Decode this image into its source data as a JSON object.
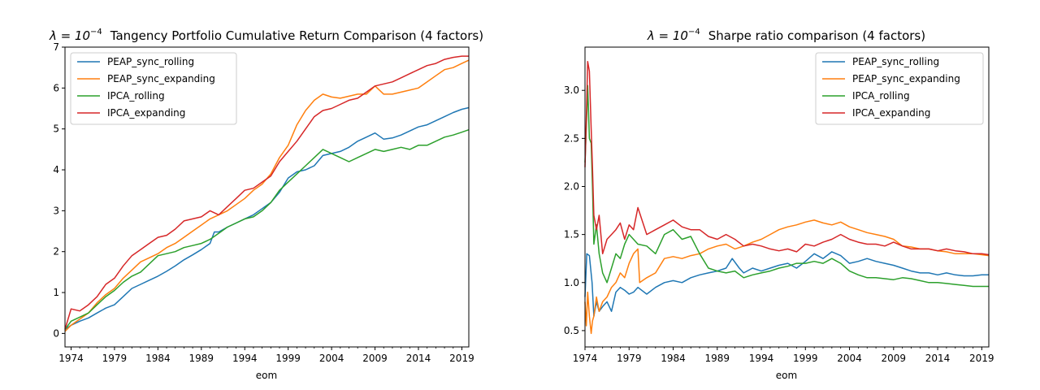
{
  "chart_data": [
    {
      "type": "line",
      "title_lambda": "λ = 10",
      "title_exp": "−4",
      "title_rest": "Tangency Portfolio Cumulative Return Comparison (4 factors)",
      "xlabel": "eom",
      "ylabel": "",
      "xlim": [
        1973.3,
        2019.8
      ],
      "ylim": [
        -0.33,
        7.0
      ],
      "xticks": [
        1974,
        1979,
        1984,
        1989,
        1994,
        1999,
        2004,
        2009,
        2014,
        2019
      ],
      "yticks": [
        0,
        1,
        2,
        3,
        4,
        5,
        6,
        7
      ],
      "grid": false,
      "legend_position": "upper left",
      "series": [
        {
          "name": "PEAP_sync_rolling",
          "color": "#1f77b4",
          "x": [
            1973.3,
            1974,
            1975,
            1976,
            1977,
            1978,
            1979,
            1980,
            1981,
            1982,
            1983,
            1984,
            1985,
            1986,
            1987,
            1988,
            1989,
            1990,
            1990.5,
            1991,
            1992,
            1993,
            1994,
            1995,
            1996,
            1997,
            1998,
            1999,
            2000,
            2001,
            2002,
            2003,
            2004,
            2005,
            2006,
            2007,
            2008,
            2009,
            2010,
            2011,
            2012,
            2013,
            2014,
            2015,
            2016,
            2017,
            2018,
            2019,
            2019.8
          ],
          "y": [
            0.1,
            0.2,
            0.3,
            0.38,
            0.5,
            0.62,
            0.7,
            0.9,
            1.1,
            1.2,
            1.3,
            1.4,
            1.52,
            1.65,
            1.8,
            1.92,
            2.05,
            2.2,
            2.48,
            2.48,
            2.6,
            2.7,
            2.8,
            2.9,
            3.05,
            3.2,
            3.45,
            3.8,
            3.95,
            4.0,
            4.1,
            4.35,
            4.4,
            4.45,
            4.55,
            4.7,
            4.8,
            4.9,
            4.75,
            4.78,
            4.85,
            4.95,
            5.05,
            5.1,
            5.2,
            5.3,
            5.4,
            5.48,
            5.52
          ]
        },
        {
          "name": "PEAP_sync_expanding",
          "color": "#ff7f0e",
          "x": [
            1973.3,
            1974,
            1975,
            1976,
            1977,
            1978,
            1979,
            1980,
            1981,
            1982,
            1983,
            1984,
            1985,
            1986,
            1987,
            1988,
            1989,
            1990,
            1991,
            1992,
            1993,
            1994,
            1995,
            1996,
            1997,
            1998,
            1999,
            2000,
            2001,
            2002,
            2003,
            2004,
            2005,
            2006,
            2007,
            2008,
            2009,
            2010,
            2011,
            2012,
            2013,
            2014,
            2015,
            2016,
            2017,
            2018,
            2019,
            2019.8
          ],
          "y": [
            0.05,
            0.2,
            0.35,
            0.5,
            0.75,
            0.95,
            1.1,
            1.35,
            1.55,
            1.75,
            1.85,
            1.95,
            2.1,
            2.2,
            2.35,
            2.5,
            2.65,
            2.8,
            2.9,
            3.0,
            3.15,
            3.3,
            3.5,
            3.65,
            3.9,
            4.3,
            4.6,
            5.1,
            5.45,
            5.7,
            5.85,
            5.78,
            5.75,
            5.8,
            5.85,
            5.85,
            6.05,
            5.85,
            5.85,
            5.9,
            5.95,
            6.0,
            6.15,
            6.3,
            6.45,
            6.5,
            6.6,
            6.68
          ]
        },
        {
          "name": "IPCA_rolling",
          "color": "#2ca02c",
          "x": [
            1973.3,
            1974,
            1975,
            1976,
            1977,
            1978,
            1979,
            1980,
            1981,
            1982,
            1983,
            1984,
            1985,
            1986,
            1987,
            1988,
            1989,
            1990,
            1991,
            1992,
            1993,
            1994,
            1995,
            1996,
            1997,
            1998,
            1999,
            2000,
            2001,
            2002,
            2003,
            2004,
            2005,
            2006,
            2007,
            2008,
            2009,
            2010,
            2011,
            2012,
            2013,
            2014,
            2015,
            2016,
            2017,
            2018,
            2019,
            2019.8
          ],
          "y": [
            0.1,
            0.3,
            0.4,
            0.5,
            0.7,
            0.9,
            1.05,
            1.25,
            1.4,
            1.5,
            1.7,
            1.9,
            1.95,
            2.0,
            2.1,
            2.15,
            2.2,
            2.3,
            2.45,
            2.6,
            2.7,
            2.8,
            2.85,
            3.0,
            3.2,
            3.5,
            3.7,
            3.9,
            4.1,
            4.3,
            4.5,
            4.4,
            4.3,
            4.2,
            4.3,
            4.4,
            4.5,
            4.45,
            4.5,
            4.55,
            4.5,
            4.6,
            4.6,
            4.7,
            4.8,
            4.85,
            4.92,
            4.98
          ]
        },
        {
          "name": "IPCA_expanding",
          "color": "#d62728",
          "x": [
            1973.3,
            1974,
            1975,
            1976,
            1977,
            1978,
            1979,
            1980,
            1981,
            1982,
            1983,
            1984,
            1985,
            1986,
            1987,
            1988,
            1989,
            1990,
            1991,
            1992,
            1993,
            1994,
            1995,
            1996,
            1997,
            1998,
            1999,
            2000,
            2001,
            2002,
            2003,
            2004,
            2005,
            2006,
            2007,
            2008,
            2009,
            2010,
            2011,
            2012,
            2013,
            2014,
            2015,
            2016,
            2017,
            2018,
            2019,
            2019.8
          ],
          "y": [
            0.1,
            0.6,
            0.55,
            0.7,
            0.9,
            1.2,
            1.35,
            1.65,
            1.9,
            2.05,
            2.2,
            2.35,
            2.4,
            2.55,
            2.75,
            2.8,
            2.85,
            3.0,
            2.9,
            3.1,
            3.3,
            3.5,
            3.55,
            3.7,
            3.85,
            4.2,
            4.45,
            4.7,
            5.0,
            5.3,
            5.45,
            5.5,
            5.6,
            5.7,
            5.75,
            5.9,
            6.05,
            6.1,
            6.15,
            6.25,
            6.35,
            6.45,
            6.55,
            6.6,
            6.7,
            6.75,
            6.78,
            6.78
          ]
        }
      ]
    },
    {
      "type": "line",
      "title_lambda": "λ = 10",
      "title_exp": "−4",
      "title_rest": "Sharpe ratio comparison (4 factors)",
      "xlabel": "eom",
      "ylabel": "",
      "xlim": [
        1974.0,
        2019.8
      ],
      "ylim": [
        0.33,
        3.45
      ],
      "xticks": [
        1974,
        1979,
        1984,
        1989,
        1994,
        1999,
        2004,
        2009,
        2014,
        2019
      ],
      "yticks": [
        0.5,
        1.0,
        1.5,
        2.0,
        2.5,
        3.0
      ],
      "grid": false,
      "legend_position": "upper right",
      "series": [
        {
          "name": "PEAP_sync_rolling",
          "color": "#1f77b4",
          "x": [
            1974.0,
            1974.2,
            1974.5,
            1974.8,
            1975.0,
            1975.3,
            1975.6,
            1976,
            1976.5,
            1977,
            1977.5,
            1978,
            1978.5,
            1979,
            1979.5,
            1980,
            1981,
            1982,
            1983,
            1984,
            1985,
            1986,
            1987,
            1988,
            1989,
            1990,
            1990.7,
            1991.5,
            1992,
            1993,
            1994,
            1995,
            1996,
            1997,
            1998,
            1999,
            2000,
            2001,
            2002,
            2003,
            2004,
            2005,
            2006,
            2007,
            2008,
            2009,
            2010,
            2011,
            2012,
            2013,
            2014,
            2015,
            2016,
            2017,
            2018,
            2019,
            2019.8
          ],
          "y": [
            0.85,
            1.3,
            1.28,
            1.0,
            0.65,
            0.8,
            0.7,
            0.75,
            0.8,
            0.7,
            0.9,
            0.95,
            0.92,
            0.88,
            0.9,
            0.95,
            0.88,
            0.95,
            1.0,
            1.02,
            1.0,
            1.05,
            1.08,
            1.1,
            1.12,
            1.15,
            1.25,
            1.15,
            1.1,
            1.15,
            1.12,
            1.15,
            1.18,
            1.2,
            1.15,
            1.22,
            1.3,
            1.25,
            1.32,
            1.28,
            1.2,
            1.22,
            1.25,
            1.22,
            1.2,
            1.18,
            1.15,
            1.12,
            1.1,
            1.1,
            1.08,
            1.1,
            1.08,
            1.07,
            1.07,
            1.08,
            1.08
          ]
        },
        {
          "name": "PEAP_sync_expanding",
          "color": "#ff7f0e",
          "x": [
            1974.0,
            1974.15,
            1974.3,
            1974.5,
            1974.7,
            1974.85,
            1975.0,
            1975.3,
            1975.6,
            1976,
            1976.5,
            1977,
            1977.5,
            1978,
            1978.5,
            1979,
            1979.5,
            1980,
            1980.2,
            1981,
            1982,
            1983,
            1984,
            1985,
            1986,
            1987,
            1988,
            1989,
            1990,
            1991,
            1992,
            1993,
            1994,
            1995,
            1996,
            1997,
            1998,
            1999,
            2000,
            2001,
            2002,
            2003,
            2004,
            2005,
            2006,
            2007,
            2008,
            2009,
            2010,
            2011,
            2012,
            2013,
            2014,
            2015,
            2016,
            2017,
            2018,
            2019,
            2019.8
          ],
          "y": [
            0.8,
            0.55,
            0.9,
            0.65,
            0.47,
            0.6,
            0.65,
            0.85,
            0.7,
            0.8,
            0.85,
            0.95,
            1.0,
            1.1,
            1.05,
            1.2,
            1.3,
            1.35,
            1.0,
            1.05,
            1.1,
            1.25,
            1.27,
            1.25,
            1.28,
            1.3,
            1.35,
            1.38,
            1.4,
            1.35,
            1.38,
            1.42,
            1.45,
            1.5,
            1.55,
            1.58,
            1.6,
            1.63,
            1.65,
            1.62,
            1.6,
            1.63,
            1.58,
            1.55,
            1.52,
            1.5,
            1.48,
            1.45,
            1.38,
            1.37,
            1.35,
            1.35,
            1.33,
            1.32,
            1.3,
            1.3,
            1.3,
            1.29,
            1.28
          ]
        },
        {
          "name": "IPCA_rolling",
          "color": "#2ca02c",
          "x": [
            1974.0,
            1974.15,
            1974.3,
            1974.5,
            1974.7,
            1974.85,
            1975.0,
            1975.3,
            1975.6,
            1976,
            1976.5,
            1977,
            1977.5,
            1978,
            1978.5,
            1979,
            1979.5,
            1980,
            1981,
            1982,
            1983,
            1984,
            1985,
            1986,
            1987,
            1988,
            1989,
            1990,
            1991,
            1992,
            1993,
            1994,
            1995,
            1996,
            1997,
            1998,
            1999,
            2000,
            2001,
            2002,
            2003,
            2004,
            2005,
            2006,
            2007,
            2008,
            2009,
            2010,
            2011,
            2012,
            2013,
            2014,
            2015,
            2016,
            2017,
            2018,
            2019,
            2019.8
          ],
          "y": [
            2.25,
            2.6,
            3.05,
            2.5,
            2.45,
            2.0,
            1.4,
            1.6,
            1.3,
            1.1,
            1.0,
            1.15,
            1.3,
            1.25,
            1.4,
            1.5,
            1.45,
            1.4,
            1.38,
            1.3,
            1.5,
            1.55,
            1.45,
            1.48,
            1.3,
            1.15,
            1.12,
            1.1,
            1.12,
            1.05,
            1.08,
            1.1,
            1.12,
            1.15,
            1.17,
            1.2,
            1.2,
            1.22,
            1.2,
            1.25,
            1.2,
            1.12,
            1.08,
            1.05,
            1.05,
            1.04,
            1.03,
            1.05,
            1.04,
            1.02,
            1.0,
            1.0,
            0.99,
            0.98,
            0.97,
            0.96,
            0.96,
            0.96
          ]
        },
        {
          "name": "IPCA_expanding",
          "color": "#d62728",
          "x": [
            1974.0,
            1974.15,
            1974.3,
            1974.5,
            1974.7,
            1974.85,
            1975.0,
            1975.3,
            1975.6,
            1976,
            1976.5,
            1977,
            1977.5,
            1978,
            1978.5,
            1979,
            1979.5,
            1980,
            1981,
            1982,
            1983,
            1984,
            1985,
            1986,
            1987,
            1988,
            1989,
            1990,
            1991,
            1992,
            1993,
            1994,
            1995,
            1996,
            1997,
            1998,
            1999,
            2000,
            2001,
            2002,
            2003,
            2004,
            2005,
            2006,
            2007,
            2008,
            2009,
            2010,
            2011,
            2012,
            2013,
            2014,
            2015,
            2016,
            2017,
            2018,
            2019,
            2019.8
          ],
          "y": [
            2.2,
            2.7,
            3.3,
            3.2,
            2.6,
            2.2,
            1.7,
            1.55,
            1.7,
            1.3,
            1.45,
            1.5,
            1.55,
            1.62,
            1.45,
            1.6,
            1.55,
            1.78,
            1.5,
            1.55,
            1.6,
            1.65,
            1.58,
            1.55,
            1.55,
            1.48,
            1.45,
            1.5,
            1.45,
            1.38,
            1.4,
            1.38,
            1.35,
            1.33,
            1.35,
            1.32,
            1.4,
            1.38,
            1.42,
            1.45,
            1.5,
            1.45,
            1.42,
            1.4,
            1.4,
            1.38,
            1.42,
            1.38,
            1.35,
            1.35,
            1.35,
            1.33,
            1.35,
            1.33,
            1.32,
            1.3,
            1.3,
            1.29
          ]
        }
      ]
    }
  ]
}
